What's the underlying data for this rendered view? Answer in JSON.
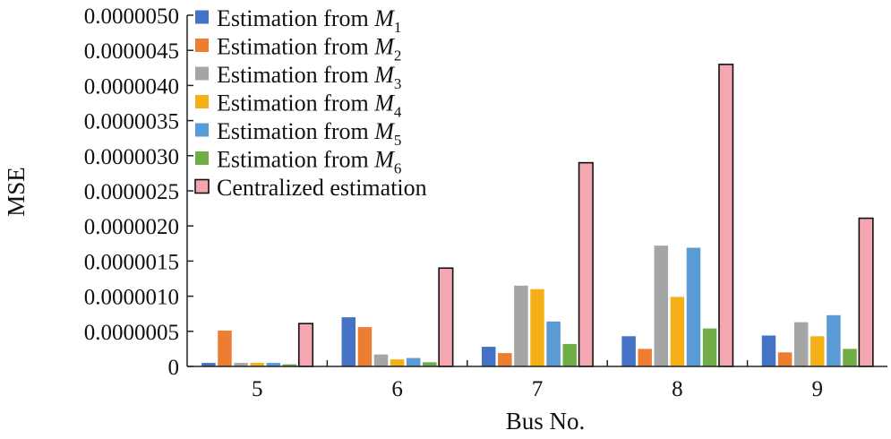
{
  "chart_data": {
    "type": "bar",
    "xlabel": "Bus No.",
    "ylabel": "MSE",
    "categories": [
      "5",
      "6",
      "7",
      "8",
      "9"
    ],
    "ylim": [
      0,
      5e-06
    ],
    "yticks": [
      "0",
      "0.0000005",
      "0.0000010",
      "0.0000015",
      "0.0000020",
      "0.0000025",
      "0.0000030",
      "0.0000035",
      "0.0000040",
      "0.0000045",
      "0.0000050"
    ],
    "yticks_values": [
      0,
      5e-07,
      1e-06,
      1.5e-06,
      2e-06,
      2.5e-06,
      3e-06,
      3.5e-06,
      4e-06,
      4.5e-06,
      5e-06
    ],
    "legend_placement": "top-left",
    "grid": false,
    "series": [
      {
        "name": "Estimation from M1",
        "label_prefix": "Estimation from ",
        "label_symbol": "M",
        "label_sub": "1",
        "color": "#4472C4",
        "values": [
          5e-08,
          7e-07,
          2.8e-07,
          4.3e-07,
          4.4e-07
        ]
      },
      {
        "name": "Estimation from M2",
        "label_prefix": "Estimation from ",
        "label_symbol": "M",
        "label_sub": "2",
        "color": "#ED7D31",
        "values": [
          5.1e-07,
          5.6e-07,
          1.9e-07,
          2.5e-07,
          2e-07
        ]
      },
      {
        "name": "Estimation from M3",
        "label_prefix": "Estimation from ",
        "label_symbol": "M",
        "label_sub": "3",
        "color": "#A5A5A5",
        "values": [
          5e-08,
          1.7e-07,
          1.15e-06,
          1.72e-06,
          6.3e-07
        ]
      },
      {
        "name": "Estimation from M4",
        "label_prefix": "Estimation from ",
        "label_symbol": "M",
        "label_sub": "4",
        "color": "#F5B018",
        "values": [
          5e-08,
          1e-07,
          1.1e-06,
          9.9e-07,
          4.3e-07
        ]
      },
      {
        "name": "Estimation from M5",
        "label_prefix": "Estimation from ",
        "label_symbol": "M",
        "label_sub": "5",
        "color": "#5B9BD5",
        "values": [
          5e-08,
          1.2e-07,
          6.4e-07,
          1.69e-06,
          7.3e-07
        ]
      },
      {
        "name": "Estimation from M6",
        "label_prefix": "Estimation from ",
        "label_symbol": "M",
        "label_sub": "6",
        "color": "#70AD47",
        "values": [
          3e-08,
          6e-08,
          3.2e-07,
          5.4e-07,
          2.5e-07
        ]
      },
      {
        "name": "Centralized estimation",
        "label_prefix": "Centralized estimation",
        "label_symbol": "",
        "label_sub": "",
        "color": "#F4A7B0",
        "outline": "#111111",
        "values": [
          6.1e-07,
          1.4e-06,
          2.9e-06,
          4.3e-06,
          2.11e-06
        ]
      }
    ]
  }
}
